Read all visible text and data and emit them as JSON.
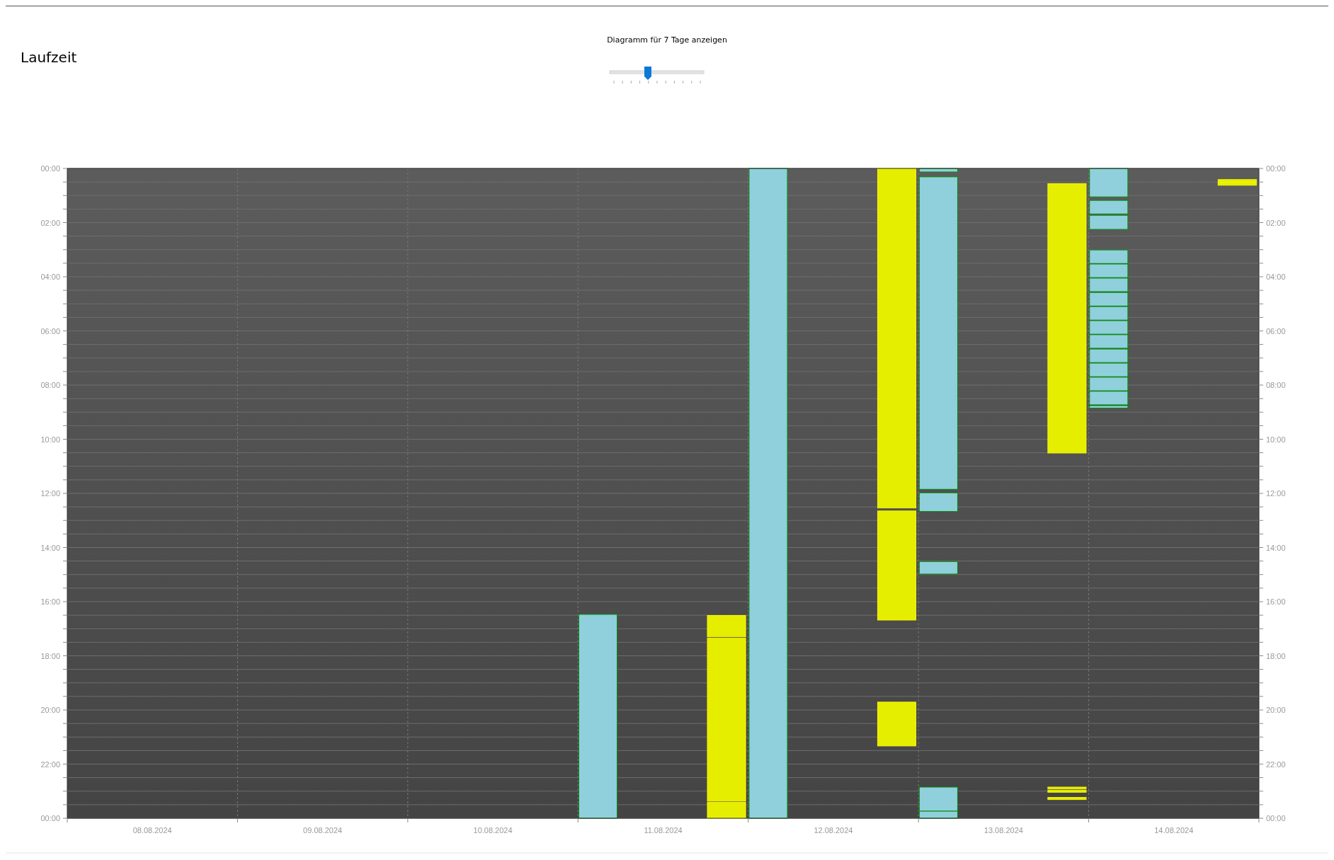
{
  "chart_data": {
    "type": "bar",
    "title": "Laufzeit",
    "subtitle": "Diagramm für 7 Tage anzeigen",
    "categories": [
      "08.08.2024",
      "09.08.2024",
      "10.08.2024",
      "11.08.2024",
      "12.08.2024",
      "13.08.2024",
      "14.08.2024"
    ],
    "ylim": [
      24,
      0
    ],
    "yticks": [
      {
        "value": 0,
        "label": "00:00"
      },
      {
        "value": 0.5,
        "label": null
      },
      {
        "value": 1,
        "label": null
      },
      {
        "value": 1.5,
        "label": null
      },
      {
        "value": 2,
        "label": "02:00"
      },
      {
        "value": 2.5,
        "label": null
      },
      {
        "value": 3,
        "label": null
      },
      {
        "value": 3.5,
        "label": null
      },
      {
        "value": 4,
        "label": "04:00"
      },
      {
        "value": 4.5,
        "label": null
      },
      {
        "value": 5,
        "label": null
      },
      {
        "value": 5.5,
        "label": null
      },
      {
        "value": 6,
        "label": "06:00"
      },
      {
        "value": 6.5,
        "label": null
      },
      {
        "value": 7,
        "label": null
      },
      {
        "value": 7.5,
        "label": null
      },
      {
        "value": 8,
        "label": "08:00"
      },
      {
        "value": 8.5,
        "label": null
      },
      {
        "value": 9,
        "label": null
      },
      {
        "value": 9.5,
        "label": null
      },
      {
        "value": 10,
        "label": "10:00"
      },
      {
        "value": 10.5,
        "label": null
      },
      {
        "value": 11,
        "label": null
      },
      {
        "value": 11.5,
        "label": null
      },
      {
        "value": 12,
        "label": "12:00"
      },
      {
        "value": 12.5,
        "label": null
      },
      {
        "value": 13,
        "label": null
      },
      {
        "value": 13.5,
        "label": null
      },
      {
        "value": 14,
        "label": "14:00"
      },
      {
        "value": 14.5,
        "label": null
      },
      {
        "value": 15,
        "label": null
      },
      {
        "value": 15.5,
        "label": null
      },
      {
        "value": 16,
        "label": "16:00"
      },
      {
        "value": 16.5,
        "label": null
      },
      {
        "value": 17,
        "label": null
      },
      {
        "value": 17.5,
        "label": null
      },
      {
        "value": 18,
        "label": "18:00"
      },
      {
        "value": 18.5,
        "label": null
      },
      {
        "value": 19,
        "label": null
      },
      {
        "value": 19.5,
        "label": null
      },
      {
        "value": 20,
        "label": "20:00"
      },
      {
        "value": 20.5,
        "label": null
      },
      {
        "value": 21,
        "label": null
      },
      {
        "value": 21.5,
        "label": null
      },
      {
        "value": 22,
        "label": "22:00"
      },
      {
        "value": 22.5,
        "label": null
      },
      {
        "value": 23,
        "label": null
      },
      {
        "value": 23.5,
        "label": null
      },
      {
        "value": 24,
        "label": "00:00"
      }
    ],
    "y2lim": [
      24,
      0
    ],
    "y2ticks": [
      {
        "value": 0,
        "label": "00:00"
      },
      {
        "value": 0.5,
        "label": null
      },
      {
        "value": 1,
        "label": null
      },
      {
        "value": 1.5,
        "label": null
      },
      {
        "value": 2,
        "label": "02:00"
      },
      {
        "value": 2.5,
        "label": null
      },
      {
        "value": 3,
        "label": null
      },
      {
        "value": 3.5,
        "label": null
      },
      {
        "value": 4,
        "label": "04:00"
      },
      {
        "value": 4.5,
        "label": null
      },
      {
        "value": 5,
        "label": null
      },
      {
        "value": 5.5,
        "label": null
      },
      {
        "value": 6,
        "label": "06:00"
      },
      {
        "value": 6.5,
        "label": null
      },
      {
        "value": 7,
        "label": null
      },
      {
        "value": 7.5,
        "label": null
      },
      {
        "value": 8,
        "label": "08:00"
      },
      {
        "value": 8.5,
        "label": null
      },
      {
        "value": 9,
        "label": null
      },
      {
        "value": 9.5,
        "label": null
      },
      {
        "value": 10,
        "label": "10:00"
      },
      {
        "value": 10.5,
        "label": null
      },
      {
        "value": 11,
        "label": null
      },
      {
        "value": 11.5,
        "label": null
      },
      {
        "value": 12,
        "label": "12:00"
      },
      {
        "value": 12.5,
        "label": null
      },
      {
        "value": 13,
        "label": null
      },
      {
        "value": 13.5,
        "label": null
      },
      {
        "value": 14,
        "label": "14:00"
      },
      {
        "value": 14.5,
        "label": null
      },
      {
        "value": 15,
        "label": null
      },
      {
        "value": 15.5,
        "label": null
      },
      {
        "value": 16,
        "label": "16:00"
      },
      {
        "value": 16.5,
        "label": null
      },
      {
        "value": 17,
        "label": null
      },
      {
        "value": 17.5,
        "label": null
      },
      {
        "value": 18,
        "label": "18:00"
      },
      {
        "value": 18.5,
        "label": null
      },
      {
        "value": 19,
        "label": null
      },
      {
        "value": 19.5,
        "label": null
      },
      {
        "value": 20,
        "label": "20:00"
      },
      {
        "value": 20.5,
        "label": null
      },
      {
        "value": 21,
        "label": null
      },
      {
        "value": 21.5,
        "label": null
      },
      {
        "value": 22,
        "label": "22:00"
      },
      {
        "value": 22.5,
        "label": null
      },
      {
        "value": 23,
        "label": null
      },
      {
        "value": 23.5,
        "label": null
      },
      {
        "value": 24,
        "label": "00:00"
      }
    ],
    "grid": true,
    "series": [
      {
        "color": "#8fd0dc",
        "base": [
          null,
          null,
          null,
          16.47,
          0,
          0,
          0
        ],
        "values": [
          null,
          null,
          null,
          7.53,
          24,
          0.13,
          1.05
        ]
      },
      {
        "color": "#8fd0dc",
        "base": [
          null,
          null,
          null,
          null,
          null,
          0.31,
          1.18
        ],
        "values": [
          null,
          null,
          null,
          null,
          null,
          11.54,
          0.5
        ]
      },
      {
        "color": "#8fd0dc",
        "base": [
          null,
          null,
          null,
          null,
          null,
          11.98,
          1.73
        ],
        "values": [
          null,
          null,
          null,
          null,
          null,
          0.69,
          0.52
        ]
      },
      {
        "color": "#8fd0dc",
        "base": [
          null,
          null,
          null,
          null,
          null,
          14.52,
          3.01
        ],
        "values": [
          null,
          null,
          null,
          null,
          null,
          0.46,
          0.5
        ]
      },
      {
        "color": "#8fd0dc",
        "base": [
          null,
          null,
          null,
          null,
          null,
          22.85,
          3.53
        ],
        "values": [
          null,
          null,
          null,
          null,
          null,
          0.89,
          0.5
        ]
      },
      {
        "color": "#8fd0dc",
        "base": [
          null,
          null,
          null,
          null,
          null,
          23.74,
          4.05
        ],
        "values": [
          null,
          null,
          null,
          null,
          null,
          0.26,
          0.5
        ]
      },
      {
        "color": "#8fd0dc",
        "base": [
          null,
          null,
          null,
          null,
          null,
          null,
          4.58
        ],
        "values": [
          null,
          null,
          null,
          null,
          null,
          null,
          0.5
        ]
      },
      {
        "color": "#8fd0dc",
        "base": [
          null,
          null,
          null,
          null,
          null,
          null,
          5.1
        ],
        "values": [
          null,
          null,
          null,
          null,
          null,
          null,
          0.5
        ]
      },
      {
        "color": "#8fd0dc",
        "base": [
          null,
          null,
          null,
          null,
          null,
          null,
          5.62
        ],
        "values": [
          null,
          null,
          null,
          null,
          null,
          null,
          0.5
        ]
      },
      {
        "color": "#8fd0dc",
        "base": [
          null,
          null,
          null,
          null,
          null,
          null,
          6.14
        ],
        "values": [
          null,
          null,
          null,
          null,
          null,
          null,
          0.5
        ]
      },
      {
        "color": "#8fd0dc",
        "base": [
          null,
          null,
          null,
          null,
          null,
          null,
          6.67
        ],
        "values": [
          null,
          null,
          null,
          null,
          null,
          null,
          0.5
        ]
      },
      {
        "color": "#8fd0dc",
        "base": [
          null,
          null,
          null,
          null,
          null,
          null,
          7.19
        ],
        "values": [
          null,
          null,
          null,
          null,
          null,
          null,
          0.5
        ]
      },
      {
        "color": "#8fd0dc",
        "base": [
          null,
          null,
          null,
          null,
          null,
          null,
          7.71
        ],
        "values": [
          null,
          null,
          null,
          null,
          null,
          null,
          0.5
        ]
      },
      {
        "color": "#8fd0dc",
        "base": [
          null,
          null,
          null,
          null,
          null,
          null,
          8.23
        ],
        "values": [
          null,
          null,
          null,
          null,
          null,
          null,
          0.5
        ]
      },
      {
        "color": "#8fd0dc",
        "base": [
          null,
          null,
          null,
          null,
          null,
          null,
          8.76
        ],
        "values": [
          null,
          null,
          null,
          null,
          null,
          null,
          0.09
        ]
      },
      {
        "color": "#e6ee00",
        "base": [
          null,
          null,
          null,
          16.51,
          0,
          0.56,
          0.41
        ],
        "values": [
          null,
          null,
          null,
          0.79,
          12.54,
          9.95,
          0.1
        ]
      },
      {
        "color": "#e6ee00",
        "base": [
          null,
          null,
          null,
          17.35,
          12.65,
          22.85,
          0.52
        ],
        "values": [
          null,
          null,
          null,
          6.02,
          4.03,
          0.06,
          0.1
        ]
      },
      {
        "color": "#e6ee00",
        "base": [
          null,
          null,
          null,
          23.41,
          19.71,
          22.96,
          null
        ],
        "values": [
          null,
          null,
          null,
          0.59,
          1.62,
          0.08,
          null
        ]
      },
      {
        "color": "#e6ee00",
        "base": [
          null,
          null,
          null,
          null,
          null,
          23.23,
          null
        ],
        "values": [
          null,
          null,
          null,
          null,
          null,
          0.08,
          null
        ]
      }
    ]
  }
}
